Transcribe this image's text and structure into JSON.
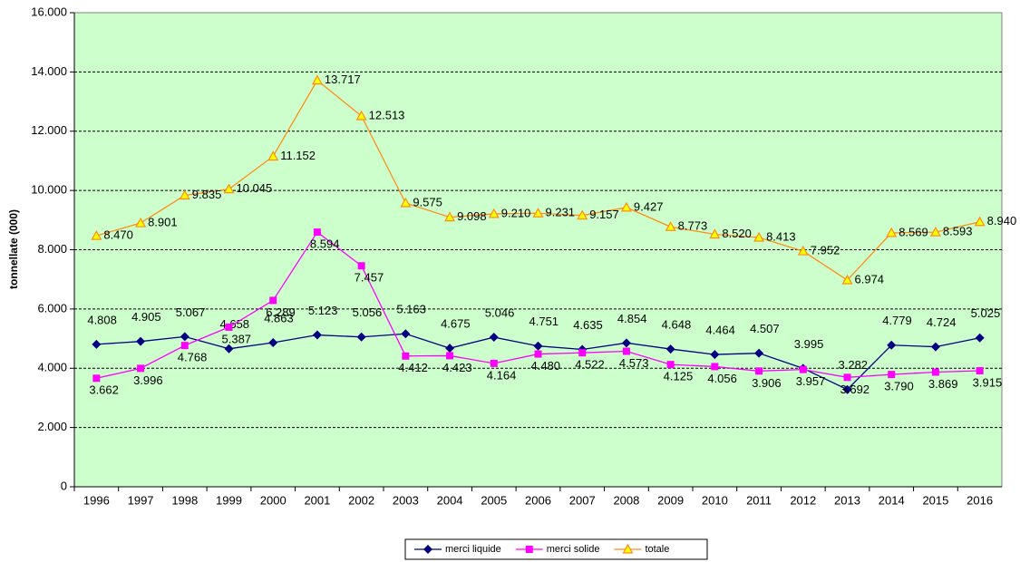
{
  "chart_data": {
    "type": "line",
    "y_label": "tonnellate (000)",
    "categories": [
      "1996",
      "1997",
      "1998",
      "1999",
      "2000",
      "2001",
      "2002",
      "2003",
      "2004",
      "2005",
      "2006",
      "2007",
      "2008",
      "2009",
      "2010",
      "2011",
      "2012",
      "2013",
      "2014",
      "2015",
      "2016"
    ],
    "ylim": [
      0,
      16000
    ],
    "yticks": [
      0,
      {
        "value": 2000,
        "label": "2.000"
      },
      {
        "value": 4000,
        "label": "4.000"
      },
      {
        "value": 6000,
        "label": "6.000"
      },
      {
        "value": 8000,
        "label": "8.000"
      },
      {
        "value": 10000,
        "label": "10.000"
      },
      {
        "value": 12000,
        "label": "12.000"
      },
      {
        "value": 14000,
        "label": "14.000"
      },
      {
        "value": 16000,
        "label": "16.000"
      }
    ],
    "grid": true,
    "legend": "bottom",
    "series": [
      {
        "name": "merci liquide",
        "color": "#000080",
        "marker": "diamond",
        "values": [
          4808,
          4905,
          5067,
          4658,
          4863,
          5123,
          5056,
          5163,
          4675,
          5046,
          4751,
          4635,
          4854,
          4648,
          4464,
          4507,
          3995,
          3282,
          4779,
          4724,
          5025
        ],
        "value_labels": [
          "4.808",
          "4.905",
          "5.067",
          "4.658",
          "4.863",
          "5.123",
          "5.056",
          "5.163",
          "4.675",
          "5.046",
          "4.751",
          "4.635",
          "4.854",
          "4.648",
          "4.464",
          "4.507",
          "3.995",
          "3.282",
          "4.779",
          "4.724",
          "5.025"
        ]
      },
      {
        "name": "merci solide",
        "color": "#ff00ff",
        "marker": "square",
        "values": [
          3662,
          3996,
          4768,
          5387,
          6289,
          8594,
          7457,
          4412,
          4423,
          4164,
          4480,
          4522,
          4573,
          4125,
          4056,
          3906,
          3957,
          3692,
          3790,
          3869,
          3915
        ],
        "value_labels": [
          "3.662",
          "3.996",
          "4.768",
          "5.387",
          "6.289",
          "8.594",
          "7.457",
          "4.412",
          "4.423",
          "4.164",
          "4.480",
          "4.522",
          "4.573",
          "4.125",
          "4.056",
          "3.906",
          "3.957",
          "3.692",
          "3.790",
          "3.869",
          "3.915"
        ]
      },
      {
        "name": "totale",
        "color": "#ff8c1a",
        "marker": "triangle",
        "values": [
          8470,
          8901,
          9835,
          10045,
          11152,
          13717,
          12513,
          9575,
          9098,
          9210,
          9231,
          9157,
          9427,
          8773,
          8520,
          8413,
          7952,
          6974,
          8569,
          8593,
          8940
        ],
        "value_labels": [
          "8.470",
          "8.901",
          "9.835",
          "10.045",
          "11.152",
          "13.717",
          "12.513",
          "9.575",
          "9.098",
          "9.210",
          "9.231",
          "9.157",
          "9.427",
          "8.773",
          "8.520",
          "8.413",
          "7.952",
          "6.974",
          "8.569",
          "8.593",
          "8.940"
        ]
      }
    ]
  }
}
